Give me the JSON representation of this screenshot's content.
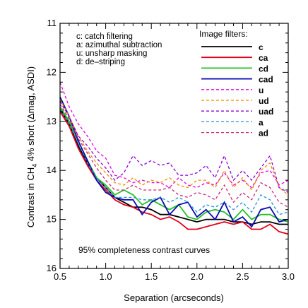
{
  "chart_data": {
    "type": "line",
    "title": "",
    "xlabel": "Separation (arcseconds)",
    "ylabel_parts": [
      "Contrast in CH",
      "4",
      " 4% short (Δmag, ASDI)"
    ],
    "xlim": [
      0.5,
      3.0
    ],
    "ylim": [
      11,
      16
    ],
    "y_inverted": true,
    "x_ticks": [
      "0.5",
      "1.0",
      "1.5",
      "2.0",
      "2.5",
      "3.0"
    ],
    "x_tick_values": [
      0.5,
      1.0,
      1.5,
      2.0,
      2.5,
      3.0
    ],
    "y_ticks": [
      "11",
      "12",
      "13",
      "14",
      "15",
      "16"
    ],
    "y_tick_values": [
      11,
      12,
      13,
      14,
      15,
      16
    ],
    "annotation": "95% completeness contrast curves",
    "key_lines": [
      "c: catch filtering",
      "a: azimuthal subtraction",
      "u: unsharp masking",
      "d: de–striping"
    ],
    "legend_title": "Image filters:",
    "x": [
      0.5,
      0.6,
      0.7,
      0.8,
      0.9,
      1.0,
      1.1,
      1.2,
      1.3,
      1.4,
      1.5,
      1.6,
      1.7,
      1.8,
      1.9,
      2.0,
      2.1,
      2.2,
      2.3,
      2.4,
      2.5,
      2.6,
      2.7,
      2.8,
      2.9,
      3.0
    ],
    "series": [
      {
        "name": "c",
        "color": "#000000",
        "dash": "solid",
        "values": [
          12.75,
          13.05,
          13.5,
          13.85,
          14.15,
          14.35,
          14.55,
          14.65,
          14.75,
          14.75,
          14.8,
          14.9,
          14.9,
          14.95,
          15.0,
          15.05,
          15.0,
          15.0,
          15.0,
          15.05,
          15.05,
          15.1,
          15.05,
          15.05,
          15.1,
          15.1
        ]
      },
      {
        "name": "ca",
        "color": "#e3001b",
        "dash": "solid",
        "values": [
          12.8,
          13.1,
          13.55,
          13.9,
          14.2,
          14.4,
          14.6,
          14.7,
          14.75,
          14.85,
          14.9,
          15.0,
          14.95,
          15.05,
          15.2,
          15.2,
          15.15,
          15.1,
          15.05,
          15.1,
          15.05,
          15.2,
          15.2,
          15.1,
          15.25,
          15.3
        ]
      },
      {
        "name": "cd",
        "color": "#22c322",
        "dash": "solid",
        "values": [
          12.7,
          13.0,
          13.4,
          13.8,
          14.15,
          14.3,
          14.5,
          14.4,
          14.5,
          14.7,
          14.6,
          14.7,
          14.8,
          14.7,
          14.95,
          15.0,
          14.85,
          14.8,
          14.85,
          15.0,
          14.8,
          15.0,
          14.9,
          14.9,
          15.0,
          15.05
        ]
      },
      {
        "name": "cad",
        "color": "#0a0ab5",
        "dash": "solid",
        "values": [
          12.5,
          12.9,
          13.4,
          13.8,
          14.2,
          14.45,
          14.55,
          14.6,
          14.6,
          14.9,
          14.65,
          14.55,
          14.9,
          14.7,
          14.65,
          14.95,
          14.8,
          15.0,
          14.65,
          15.05,
          14.95,
          15.15,
          14.8,
          14.75,
          15.05,
          15.0
        ]
      },
      {
        "name": "u",
        "color": "#e300e3",
        "dash": "dashed",
        "values": [
          12.2,
          12.7,
          13.05,
          13.3,
          13.6,
          13.75,
          14.1,
          14.15,
          14.25,
          14.2,
          14.25,
          14.25,
          14.35,
          14.15,
          14.3,
          14.35,
          14.25,
          14.3,
          14.05,
          14.3,
          14.2,
          14.35,
          14.05,
          14.0,
          14.3,
          14.2
        ]
      },
      {
        "name": "ud",
        "color": "#f08c00",
        "dash": "dashed",
        "values": [
          12.55,
          12.9,
          13.3,
          13.6,
          13.85,
          14.05,
          14.25,
          14.3,
          14.15,
          14.3,
          14.2,
          14.25,
          14.15,
          14.3,
          14.35,
          14.2,
          14.2,
          14.35,
          14.0,
          14.35,
          14.15,
          14.4,
          14.0,
          13.85,
          14.35,
          14.5
        ]
      },
      {
        "name": "uad",
        "color": "#8a00d4",
        "dash": "dashed",
        "values": [
          12.6,
          12.9,
          13.3,
          13.5,
          13.75,
          13.95,
          14.2,
          14.05,
          13.7,
          13.9,
          13.8,
          13.9,
          13.85,
          14.1,
          14.1,
          14.05,
          13.9,
          14.15,
          13.7,
          14.2,
          14.0,
          14.2,
          13.95,
          13.7,
          14.35,
          14.45
        ]
      },
      {
        "name": "a",
        "color": "#1f8fe0",
        "dash": "dashed",
        "values": [
          12.75,
          13.05,
          13.45,
          13.85,
          14.15,
          14.35,
          14.55,
          14.55,
          14.55,
          14.6,
          14.6,
          14.55,
          14.65,
          14.55,
          14.65,
          14.85,
          14.7,
          14.75,
          14.65,
          14.8,
          14.65,
          14.85,
          14.5,
          14.6,
          14.9,
          14.85
        ]
      },
      {
        "name": "ad",
        "color": "#c8287a",
        "dash": "dashed",
        "values": [
          12.65,
          12.95,
          13.35,
          13.65,
          13.95,
          14.2,
          14.4,
          14.4,
          14.3,
          14.4,
          14.4,
          14.4,
          14.35,
          14.5,
          14.55,
          14.45,
          14.5,
          14.6,
          14.3,
          14.65,
          14.45,
          14.6,
          14.25,
          14.35,
          14.65,
          14.75
        ]
      }
    ]
  }
}
